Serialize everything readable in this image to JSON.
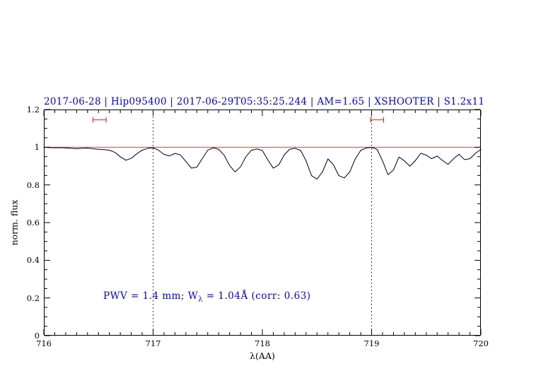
{
  "title": "2017-06-28 | Hip095400 | 2017-06-29T05:35:25.244 | AM=1.65 | XSHOOTER | S1.2x11",
  "annotation": {
    "prefix": "PWV = 1.4 mm; W",
    "sub": "λ",
    "suffix": " = 1.04Å (corr: 0.63)"
  },
  "colors": {
    "title_blue": "#0000dd",
    "annotation_blue": "#0000dd",
    "reference_red": "#cc4444",
    "marker_red": "#cc2222",
    "spectrum_black": "#000000",
    "axis_black": "#000000"
  },
  "chart_data": {
    "type": "line",
    "title": "2017-06-28 | Hip095400 | 2017-06-29T05:35:25.244 | AM=1.65 | XSHOOTER | S1.2x11",
    "xlabel": "λ(AA)",
    "ylabel": "norm. flux",
    "xlim": [
      716,
      720
    ],
    "ylim": [
      0,
      1.2
    ],
    "xticks": [
      716,
      717,
      718,
      719,
      720
    ],
    "xtick_labels": [
      "716",
      "717",
      "718",
      "719",
      "720"
    ],
    "x_minor_step": 0.1,
    "yticks": [
      0,
      0.2,
      0.4,
      0.6,
      0.8,
      1,
      1.2
    ],
    "ytick_labels": [
      "0",
      "0.2",
      "0.4",
      "0.6",
      "0.8",
      "1",
      "1.2"
    ],
    "y_minor_step": 0.05,
    "grid": false,
    "vlines_dotted": [
      717,
      719
    ],
    "reference_hline": 1.0,
    "range_markers": [
      {
        "x1": 716.45,
        "x2": 716.57,
        "y": 1.145
      },
      {
        "x1": 718.99,
        "x2": 719.11,
        "y": 1.145
      }
    ],
    "series": [
      {
        "name": "normalized telluric spectrum",
        "x": [
          716,
          716.05,
          716.1,
          716.15,
          716.2,
          716.25,
          716.3,
          716.35,
          716.4,
          716.45,
          716.5,
          716.55,
          716.6,
          716.65,
          716.7,
          716.75,
          716.8,
          716.85,
          716.9,
          716.95,
          717,
          717.05,
          717.1,
          717.15,
          717.2,
          717.25,
          717.3,
          717.35,
          717.4,
          717.45,
          717.5,
          717.55,
          717.6,
          717.65,
          717.7,
          717.75,
          717.8,
          717.85,
          717.9,
          717.95,
          718,
          718.05,
          718.1,
          718.15,
          718.2,
          718.25,
          718.3,
          718.35,
          718.4,
          718.45,
          718.5,
          718.55,
          718.6,
          718.65,
          718.7,
          718.75,
          718.8,
          718.85,
          718.9,
          718.95,
          719,
          719.05,
          719.1,
          719.15,
          719.2,
          719.25,
          719.3,
          719.35,
          719.4,
          719.45,
          719.5,
          719.55,
          719.6,
          719.65,
          719.7,
          719.75,
          719.8,
          719.85,
          719.9,
          719.95,
          720
        ],
        "y": [
          1.0,
          0.998,
          0.997,
          0.998,
          0.996,
          0.994,
          0.992,
          0.994,
          0.995,
          0.992,
          0.989,
          0.987,
          0.984,
          0.973,
          0.949,
          0.931,
          0.941,
          0.965,
          0.984,
          0.994,
          0.997,
          0.984,
          0.962,
          0.954,
          0.967,
          0.959,
          0.924,
          0.889,
          0.894,
          0.94,
          0.984,
          0.997,
          0.989,
          0.958,
          0.903,
          0.869,
          0.896,
          0.95,
          0.984,
          0.991,
          0.983,
          0.933,
          0.889,
          0.906,
          0.959,
          0.989,
          0.994,
          0.983,
          0.928,
          0.849,
          0.831,
          0.869,
          0.938,
          0.908,
          0.849,
          0.837,
          0.869,
          0.938,
          0.983,
          0.996,
          0.999,
          0.989,
          0.928,
          0.854,
          0.879,
          0.948,
          0.928,
          0.899,
          0.929,
          0.968,
          0.958,
          0.939,
          0.953,
          0.929,
          0.909,
          0.939,
          0.963,
          0.934,
          0.939,
          0.968,
          0.988
        ]
      }
    ]
  }
}
